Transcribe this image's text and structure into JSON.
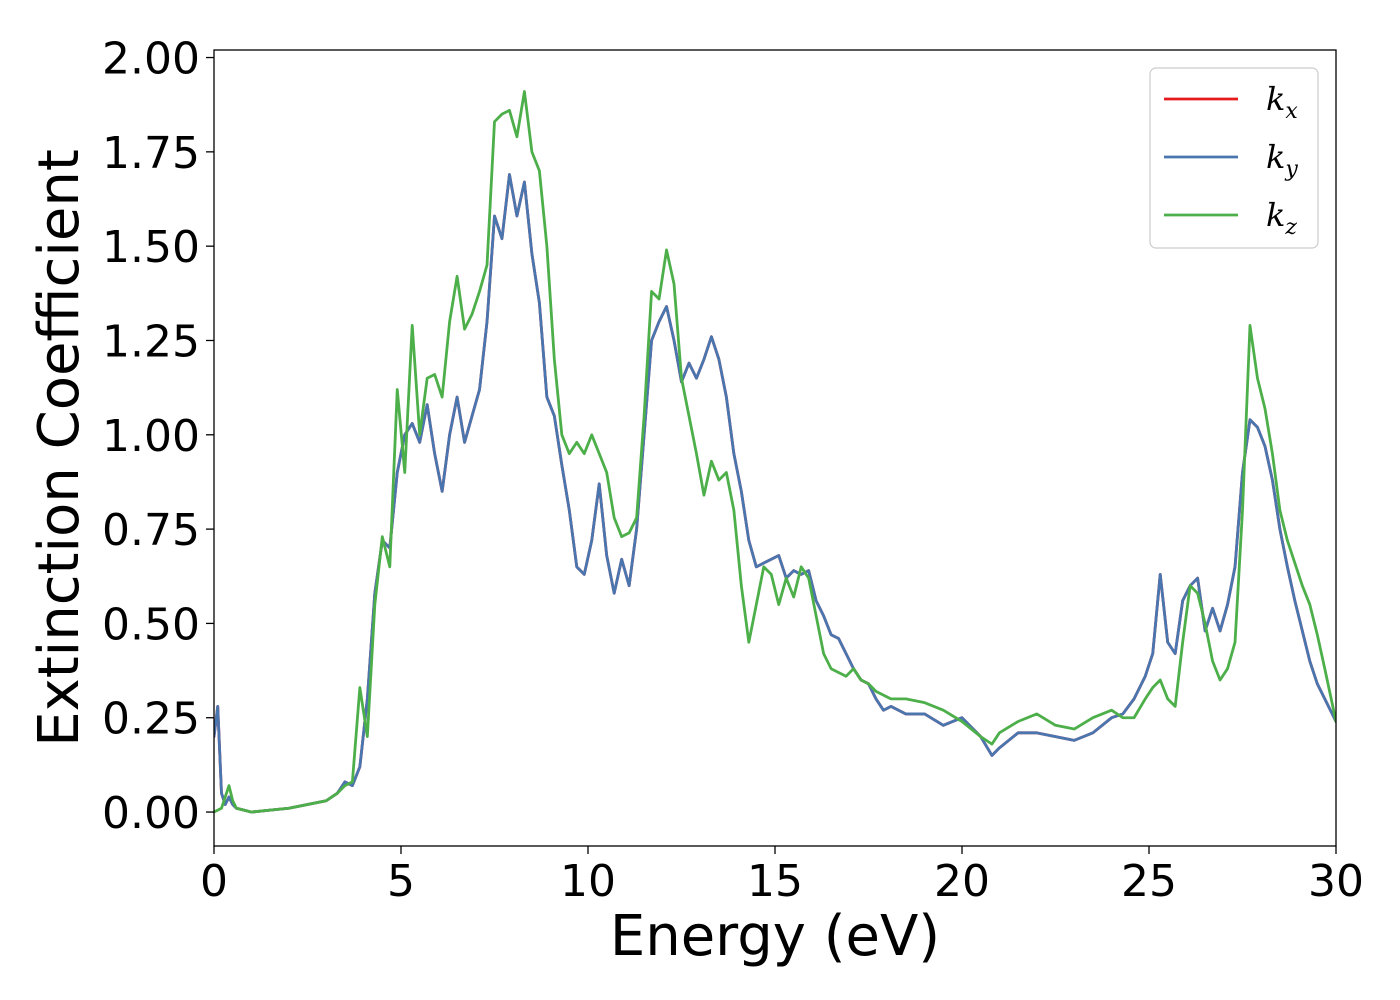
{
  "chart_data": {
    "type": "line",
    "xlabel": "Energy (eV)",
    "ylabel": "Extinction Coefficient",
    "xlim": [
      0,
      30
    ],
    "ylim": [
      -0.09,
      2.02
    ],
    "xticks": [
      0,
      5,
      10,
      15,
      20,
      25,
      30
    ],
    "xtick_labels": [
      "0",
      "5",
      "10",
      "15",
      "20",
      "25",
      "30"
    ],
    "yticks": [
      0.0,
      0.25,
      0.5,
      0.75,
      1.0,
      1.25,
      1.5,
      1.75,
      2.0
    ],
    "ytick_labels": [
      "0.00",
      "0.25",
      "0.50",
      "0.75",
      "1.00",
      "1.25",
      "1.50",
      "1.75",
      "2.00"
    ],
    "grid": false,
    "legend_position": "top-right",
    "series": [
      {
        "name": "k_x",
        "legend_base": "k",
        "legend_sub": "x",
        "color": "#e41a1c",
        "x": [
          0,
          0.1,
          0.2,
          0.3,
          0.4,
          0.5,
          0.6,
          0.8,
          1.0,
          1.5,
          2.0,
          2.5,
          3.0,
          3.3,
          3.5,
          3.7,
          3.9,
          4.1,
          4.3,
          4.5,
          4.7,
          4.9,
          5.1,
          5.3,
          5.5,
          5.7,
          5.9,
          6.1,
          6.3,
          6.5,
          6.7,
          6.9,
          7.1,
          7.3,
          7.5,
          7.7,
          7.9,
          8.1,
          8.3,
          8.5,
          8.7,
          8.9,
          9.1,
          9.3,
          9.5,
          9.7,
          9.9,
          10.1,
          10.3,
          10.5,
          10.7,
          10.9,
          11.1,
          11.3,
          11.5,
          11.7,
          11.9,
          12.1,
          12.3,
          12.5,
          12.7,
          12.9,
          13.1,
          13.3,
          13.5,
          13.7,
          13.9,
          14.1,
          14.3,
          14.5,
          14.7,
          14.9,
          15.1,
          15.3,
          15.5,
          15.7,
          15.9,
          16.1,
          16.3,
          16.5,
          16.7,
          16.9,
          17.1,
          17.3,
          17.5,
          17.7,
          17.9,
          18.1,
          18.5,
          19.0,
          19.5,
          20.0,
          20.5,
          20.8,
          21.0,
          21.5,
          22.0,
          22.5,
          23.0,
          23.5,
          24.0,
          24.3,
          24.6,
          24.9,
          25.1,
          25.3,
          25.5,
          25.7,
          25.9,
          26.1,
          26.3,
          26.5,
          26.7,
          26.9,
          27.1,
          27.3,
          27.5,
          27.7,
          27.9,
          28.1,
          28.3,
          28.5,
          28.7,
          28.9,
          29.1,
          29.3,
          29.5,
          29.7,
          30.0
        ],
        "y": [
          0.2,
          0.28,
          0.05,
          0.02,
          0.04,
          0.02,
          0.01,
          0.005,
          0.0,
          0.005,
          0.01,
          0.02,
          0.03,
          0.05,
          0.08,
          0.07,
          0.12,
          0.3,
          0.58,
          0.72,
          0.7,
          0.9,
          1.0,
          1.03,
          0.98,
          1.08,
          0.95,
          0.85,
          1.0,
          1.1,
          0.98,
          1.05,
          1.12,
          1.3,
          1.58,
          1.52,
          1.69,
          1.58,
          1.67,
          1.48,
          1.35,
          1.1,
          1.05,
          0.92,
          0.8,
          0.65,
          0.63,
          0.72,
          0.87,
          0.68,
          0.58,
          0.67,
          0.6,
          0.75,
          1.0,
          1.25,
          1.3,
          1.34,
          1.25,
          1.14,
          1.19,
          1.15,
          1.2,
          1.26,
          1.2,
          1.1,
          0.95,
          0.85,
          0.72,
          0.65,
          0.66,
          0.67,
          0.68,
          0.62,
          0.64,
          0.63,
          0.64,
          0.56,
          0.52,
          0.47,
          0.46,
          0.42,
          0.38,
          0.35,
          0.34,
          0.3,
          0.27,
          0.28,
          0.26,
          0.26,
          0.23,
          0.25,
          0.2,
          0.15,
          0.17,
          0.21,
          0.21,
          0.2,
          0.19,
          0.21,
          0.25,
          0.26,
          0.3,
          0.36,
          0.42,
          0.63,
          0.45,
          0.42,
          0.56,
          0.6,
          0.62,
          0.48,
          0.54,
          0.48,
          0.55,
          0.65,
          0.9,
          1.04,
          1.02,
          0.97,
          0.88,
          0.75,
          0.65,
          0.56,
          0.48,
          0.4,
          0.34,
          0.3,
          0.24
        ]
      },
      {
        "name": "k_y",
        "legend_base": "k",
        "legend_sub": "y",
        "color": "#4a76b0",
        "x": [
          0,
          0.1,
          0.2,
          0.3,
          0.4,
          0.5,
          0.6,
          0.8,
          1.0,
          1.5,
          2.0,
          2.5,
          3.0,
          3.3,
          3.5,
          3.7,
          3.9,
          4.1,
          4.3,
          4.5,
          4.7,
          4.9,
          5.1,
          5.3,
          5.5,
          5.7,
          5.9,
          6.1,
          6.3,
          6.5,
          6.7,
          6.9,
          7.1,
          7.3,
          7.5,
          7.7,
          7.9,
          8.1,
          8.3,
          8.5,
          8.7,
          8.9,
          9.1,
          9.3,
          9.5,
          9.7,
          9.9,
          10.1,
          10.3,
          10.5,
          10.7,
          10.9,
          11.1,
          11.3,
          11.5,
          11.7,
          11.9,
          12.1,
          12.3,
          12.5,
          12.7,
          12.9,
          13.1,
          13.3,
          13.5,
          13.7,
          13.9,
          14.1,
          14.3,
          14.5,
          14.7,
          14.9,
          15.1,
          15.3,
          15.5,
          15.7,
          15.9,
          16.1,
          16.3,
          16.5,
          16.7,
          16.9,
          17.1,
          17.3,
          17.5,
          17.7,
          17.9,
          18.1,
          18.5,
          19.0,
          19.5,
          20.0,
          20.5,
          20.8,
          21.0,
          21.5,
          22.0,
          22.5,
          23.0,
          23.5,
          24.0,
          24.3,
          24.6,
          24.9,
          25.1,
          25.3,
          25.5,
          25.7,
          25.9,
          26.1,
          26.3,
          26.5,
          26.7,
          26.9,
          27.1,
          27.3,
          27.5,
          27.7,
          27.9,
          28.1,
          28.3,
          28.5,
          28.7,
          28.9,
          29.1,
          29.3,
          29.5,
          29.7,
          30.0
        ],
        "y": [
          0.2,
          0.28,
          0.05,
          0.02,
          0.04,
          0.02,
          0.01,
          0.005,
          0.0,
          0.005,
          0.01,
          0.02,
          0.03,
          0.05,
          0.08,
          0.07,
          0.12,
          0.3,
          0.58,
          0.72,
          0.7,
          0.9,
          1.0,
          1.03,
          0.98,
          1.08,
          0.95,
          0.85,
          1.0,
          1.1,
          0.98,
          1.05,
          1.12,
          1.3,
          1.58,
          1.52,
          1.69,
          1.58,
          1.67,
          1.48,
          1.35,
          1.1,
          1.05,
          0.92,
          0.8,
          0.65,
          0.63,
          0.72,
          0.87,
          0.68,
          0.58,
          0.67,
          0.6,
          0.75,
          1.0,
          1.25,
          1.3,
          1.34,
          1.25,
          1.14,
          1.19,
          1.15,
          1.2,
          1.26,
          1.2,
          1.1,
          0.95,
          0.85,
          0.72,
          0.65,
          0.66,
          0.67,
          0.68,
          0.62,
          0.64,
          0.63,
          0.64,
          0.56,
          0.52,
          0.47,
          0.46,
          0.42,
          0.38,
          0.35,
          0.34,
          0.3,
          0.27,
          0.28,
          0.26,
          0.26,
          0.23,
          0.25,
          0.2,
          0.15,
          0.17,
          0.21,
          0.21,
          0.2,
          0.19,
          0.21,
          0.25,
          0.26,
          0.3,
          0.36,
          0.42,
          0.63,
          0.45,
          0.42,
          0.56,
          0.6,
          0.62,
          0.48,
          0.54,
          0.48,
          0.55,
          0.65,
          0.9,
          1.04,
          1.02,
          0.97,
          0.88,
          0.75,
          0.65,
          0.56,
          0.48,
          0.4,
          0.34,
          0.3,
          0.24
        ]
      },
      {
        "name": "k_z",
        "legend_base": "k",
        "legend_sub": "z",
        "color": "#4daf4a",
        "x": [
          0,
          0.1,
          0.2,
          0.3,
          0.4,
          0.5,
          0.6,
          0.8,
          1.0,
          1.5,
          2.0,
          2.5,
          3.0,
          3.3,
          3.5,
          3.7,
          3.9,
          4.1,
          4.3,
          4.5,
          4.7,
          4.9,
          5.1,
          5.3,
          5.5,
          5.7,
          5.9,
          6.1,
          6.3,
          6.5,
          6.7,
          6.9,
          7.1,
          7.3,
          7.5,
          7.7,
          7.9,
          8.1,
          8.3,
          8.5,
          8.7,
          8.9,
          9.1,
          9.3,
          9.5,
          9.7,
          9.9,
          10.1,
          10.3,
          10.5,
          10.7,
          10.9,
          11.1,
          11.3,
          11.5,
          11.7,
          11.9,
          12.1,
          12.3,
          12.5,
          12.7,
          12.9,
          13.1,
          13.3,
          13.5,
          13.7,
          13.9,
          14.1,
          14.3,
          14.5,
          14.7,
          14.9,
          15.1,
          15.3,
          15.5,
          15.7,
          15.9,
          16.1,
          16.3,
          16.5,
          16.7,
          16.9,
          17.1,
          17.3,
          17.5,
          17.7,
          17.9,
          18.1,
          18.5,
          19.0,
          19.5,
          20.0,
          20.5,
          20.8,
          21.0,
          21.5,
          22.0,
          22.5,
          23.0,
          23.5,
          24.0,
          24.3,
          24.6,
          24.9,
          25.1,
          25.3,
          25.5,
          25.7,
          25.9,
          26.1,
          26.3,
          26.5,
          26.7,
          26.9,
          27.1,
          27.3,
          27.5,
          27.7,
          27.9,
          28.1,
          28.3,
          28.5,
          28.7,
          28.9,
          29.1,
          29.3,
          29.5,
          29.7,
          30.0
        ],
        "y": [
          0.0,
          0.005,
          0.01,
          0.04,
          0.07,
          0.03,
          0.01,
          0.005,
          0.0,
          0.005,
          0.01,
          0.02,
          0.03,
          0.05,
          0.07,
          0.08,
          0.33,
          0.2,
          0.55,
          0.73,
          0.65,
          1.12,
          0.9,
          1.29,
          1.0,
          1.15,
          1.16,
          1.1,
          1.3,
          1.42,
          1.28,
          1.32,
          1.38,
          1.45,
          1.83,
          1.85,
          1.86,
          1.79,
          1.91,
          1.75,
          1.7,
          1.5,
          1.2,
          1.0,
          0.95,
          0.98,
          0.95,
          1.0,
          0.95,
          0.9,
          0.78,
          0.73,
          0.74,
          0.78,
          1.05,
          1.38,
          1.36,
          1.49,
          1.4,
          1.15,
          1.05,
          0.95,
          0.84,
          0.93,
          0.88,
          0.9,
          0.8,
          0.6,
          0.45,
          0.55,
          0.65,
          0.63,
          0.55,
          0.62,
          0.57,
          0.65,
          0.62,
          0.52,
          0.42,
          0.38,
          0.37,
          0.36,
          0.38,
          0.35,
          0.34,
          0.32,
          0.31,
          0.3,
          0.3,
          0.29,
          0.27,
          0.24,
          0.2,
          0.18,
          0.21,
          0.24,
          0.26,
          0.23,
          0.22,
          0.25,
          0.27,
          0.25,
          0.25,
          0.3,
          0.33,
          0.35,
          0.3,
          0.28,
          0.45,
          0.6,
          0.58,
          0.5,
          0.4,
          0.35,
          0.38,
          0.45,
          0.8,
          1.29,
          1.15,
          1.07,
          0.95,
          0.8,
          0.72,
          0.66,
          0.6,
          0.55,
          0.47,
          0.38,
          0.24
        ]
      }
    ]
  }
}
